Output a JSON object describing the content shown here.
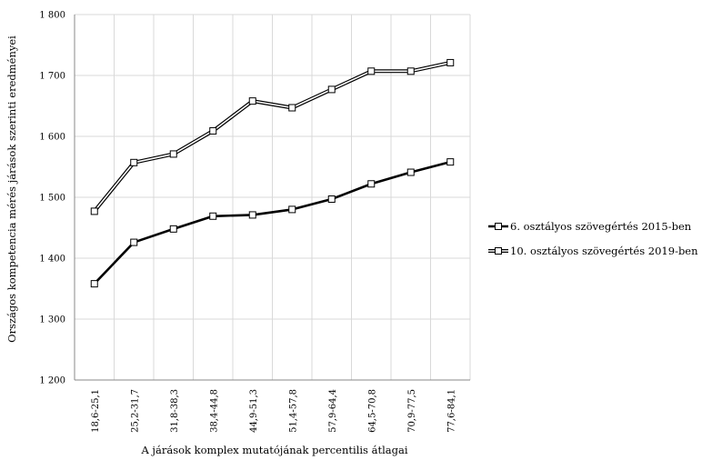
{
  "chart_data": {
    "type": "line",
    "xlabel": "A járások komplex mutatójának percentilis átlagai",
    "ylabel": "Országos kompetencia mérés járások szerinti eredményei",
    "categories": [
      "18,6-25,1",
      "25,2-31,7",
      "31,8-38,3",
      "38,4-44,8",
      "44,9-51,3",
      "51,4-57,8",
      "57,9-64,4",
      "64,5-70,8",
      "70,9-77,5",
      "77,6-84,1"
    ],
    "ylim": [
      1200,
      1800
    ],
    "yticks": [
      {
        "value": 1200,
        "label": "1 200"
      },
      {
        "value": 1300,
        "label": "1 300"
      },
      {
        "value": 1400,
        "label": "1 400"
      },
      {
        "value": 1500,
        "label": "1 500"
      },
      {
        "value": 1600,
        "label": "1 600"
      },
      {
        "value": 1700,
        "label": "1 700"
      },
      {
        "value": 1800,
        "label": "1 800"
      }
    ],
    "grid": true,
    "legend_position": "right",
    "series": [
      {
        "name": "6. osztályos szövegértés 2015-ben",
        "style": "solid",
        "color": "#000000",
        "values": [
          1358,
          1426,
          1448,
          1469,
          1471,
          1480,
          1497,
          1522,
          1541,
          1558
        ]
      },
      {
        "name": "10. osztályos szövegértés 2019-ben",
        "style": "double",
        "color": "#000000",
        "values": [
          1477,
          1557,
          1571,
          1609,
          1658,
          1647,
          1677,
          1707,
          1707,
          1721
        ]
      }
    ]
  }
}
